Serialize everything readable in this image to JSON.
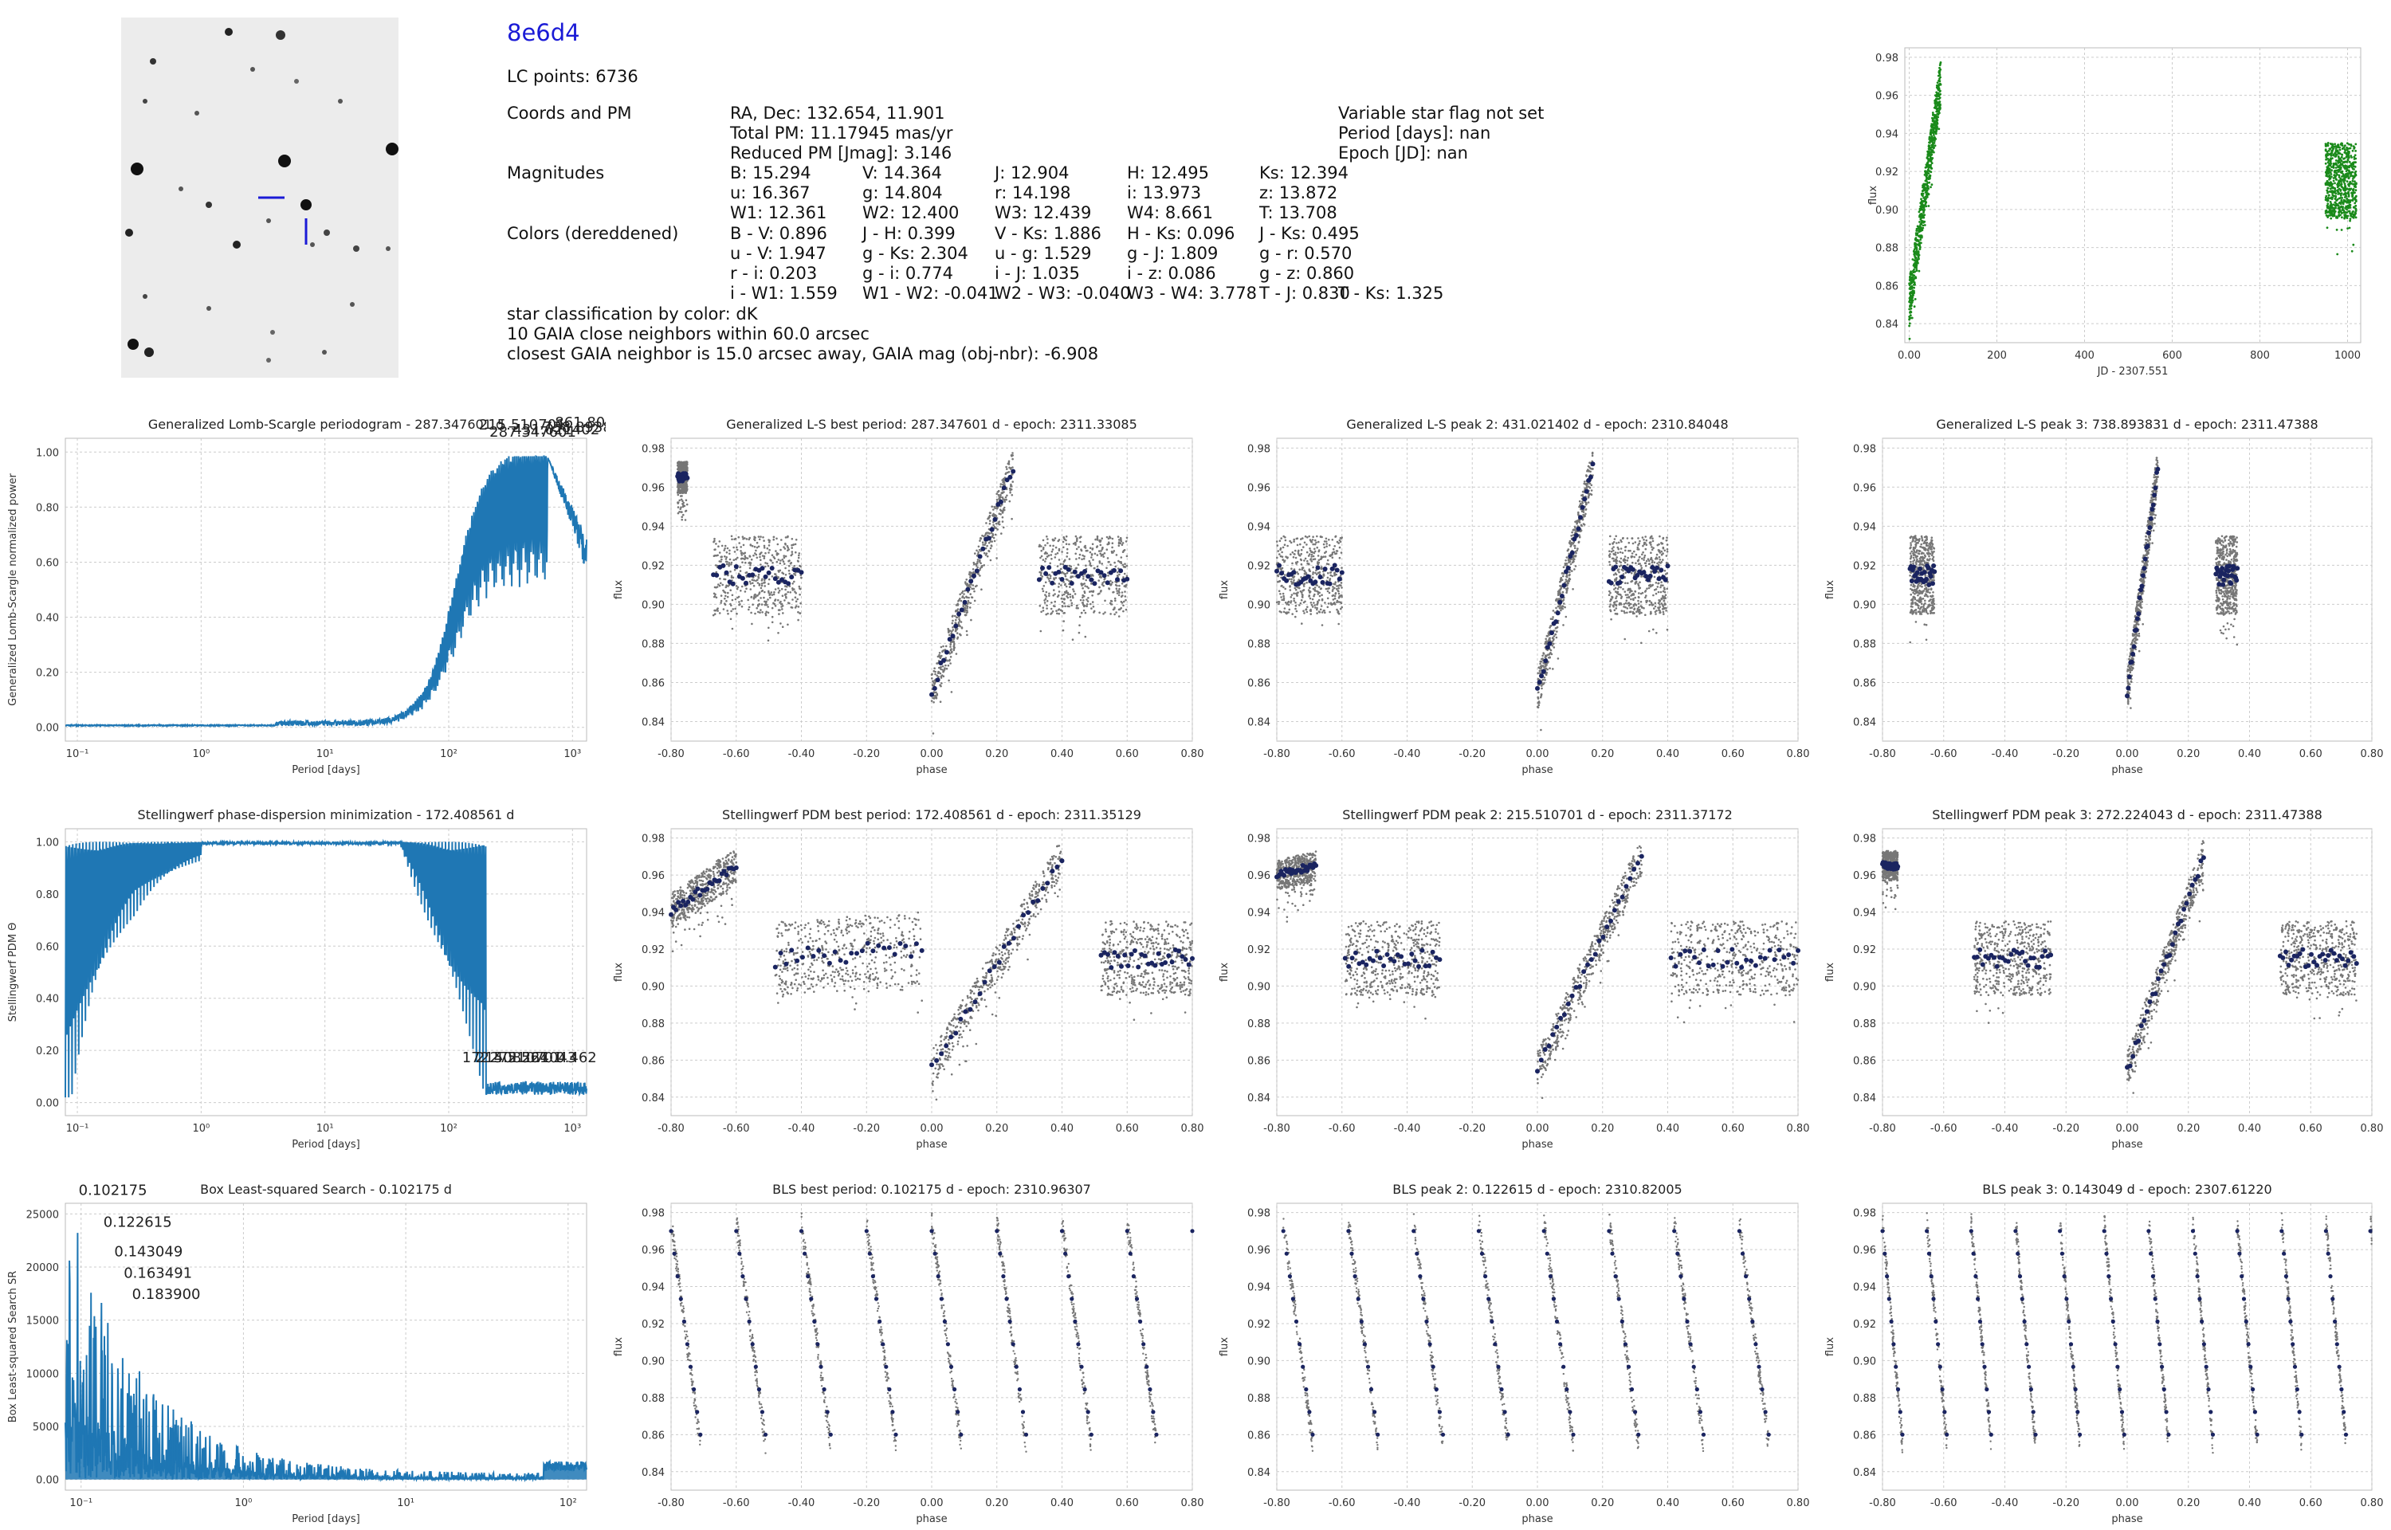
{
  "object": {
    "name": "8e6d4",
    "lc_points": "LC points: 6736",
    "coords_label": "Coords and PM",
    "radec": "RA, Dec: 132.654, 11.901",
    "total_pm": "Total PM: 11.17945 mas/yr",
    "reduced_pm": "Reduced PM [Jmag]: 3.146",
    "var_flag": "Variable star flag not set",
    "period": "Period [days]: nan",
    "epoch": "Epoch [JD]: nan",
    "mag_label": "Magnitudes",
    "mag_rows": [
      [
        "B: 15.294",
        "V: 14.364",
        "J: 12.904",
        "H: 12.495",
        "Ks: 12.394"
      ],
      [
        "u: 16.367",
        "g: 14.804",
        "r: 14.198",
        "i: 13.973",
        "z: 13.872"
      ],
      [
        "W1: 12.361",
        "W2: 12.400",
        "W3: 12.439",
        "W4: 8.661",
        "T: 13.708"
      ]
    ],
    "colors_label": "Colors (dereddened)",
    "color_rows": [
      [
        "B - V: 0.896",
        "J - H: 0.399",
        "V - Ks: 1.886",
        "H - Ks: 0.096",
        "J - Ks: 0.495"
      ],
      [
        "u - V: 1.947",
        "g - Ks: 2.304",
        "u - g: 1.529",
        "g - J: 1.809",
        "g - r: 0.570"
      ],
      [
        "r - i: 0.203",
        "g - i: 0.774",
        "i - J: 1.035",
        "i - z: 0.086",
        "g - z: 0.860"
      ],
      [
        "i - W1: 1.559",
        "W1 - W2: -0.041",
        "W2 - W3: -0.040",
        "W3 - W4: 3.778",
        "T - J: 0.830",
        "T - Ks: 1.325"
      ]
    ],
    "classification": "star classification by color: dK",
    "gaia_neighbors": "10 GAIA close neighbors within 60.0 arcsec",
    "gaia_closest": "closest GAIA neighbor is 15.0 arcsec away, GAIA mag (obj-nbr): -6.908"
  },
  "chart_data": [
    {
      "id": "raw",
      "type": "scatter",
      "xlabel": "JD - 2307.551",
      "ylabel": "flux",
      "xlim": [
        -10,
        1030
      ],
      "ylim": [
        0.83,
        0.985
      ],
      "xticks": [
        0,
        200,
        400,
        600,
        800,
        1000
      ],
      "yticks": [
        0.84,
        0.86,
        0.88,
        0.9,
        0.92,
        0.94,
        0.96,
        0.98
      ],
      "color": "#1a8a1a",
      "segments": [
        {
          "x": [
            0,
            72
          ],
          "y_start": 0.85,
          "y_end": 0.968,
          "spread": 0.012
        },
        {
          "x": [
            950,
            1020
          ],
          "y_start": 0.915,
          "y_end": 0.915,
          "spread": 0.02
        }
      ]
    },
    {
      "id": "gls",
      "type": "line",
      "title": "Generalized Lomb-Scargle periodogram - 287.347601 d",
      "xlabel": "Period [days]",
      "ylabel": "Generalized Lomb-Scargle normalized power",
      "xscale": "log",
      "xlim": [
        0.08,
        1300
      ],
      "ylim": [
        -0.05,
        1.05
      ],
      "xticks": [
        0.1,
        1,
        10,
        100,
        1000
      ],
      "xticklabels": [
        "10⁻¹",
        "10⁰",
        "10¹",
        "10²",
        "10³"
      ],
      "yticks": [
        0.0,
        0.2,
        0.4,
        0.6,
        0.8,
        1.0
      ],
      "color": "#1f77b4",
      "annotations": [
        {
          "text": "287.347601",
          "x": 287.3,
          "y": 1.0
        },
        {
          "text": "431.021402",
          "x": 431.0,
          "y": 0.99
        },
        {
          "text": "738.893831",
          "x": 738.9,
          "y": 0.98
        },
        {
          "text": "215.510701",
          "x": 215.5,
          "y": 0.97
        },
        {
          "text": "861.803",
          "x": 861.8,
          "y": 0.96
        }
      ]
    },
    {
      "id": "gls1",
      "type": "scatter",
      "title": "Generalized L-S best period: 287.347601 d - epoch: 2311.33085",
      "xlabel": "phase",
      "ylabel": "flux",
      "xlim": [
        -0.8,
        0.8
      ],
      "ylim": [
        0.83,
        0.985
      ],
      "xticks": [
        -0.8,
        -0.6,
        -0.4,
        -0.2,
        0.0,
        0.2,
        0.4,
        0.6,
        0.8
      ],
      "yticks": [
        0.84,
        0.86,
        0.88,
        0.9,
        0.92,
        0.94,
        0.96,
        0.98
      ],
      "segments": [
        {
          "x": [
            0.0,
            0.25
          ],
          "y_start": 0.855,
          "y_end": 0.97,
          "spread": 0.01
        },
        {
          "x": [
            0.33,
            0.6
          ],
          "y_start": 0.915,
          "y_end": 0.915,
          "spread": 0.02
        },
        {
          "x": [
            -0.78,
            -0.75
          ],
          "y_start": 0.965,
          "y_end": 0.965,
          "spread": 0.008
        },
        {
          "x": [
            -0.67,
            -0.4
          ],
          "y_start": 0.915,
          "y_end": 0.915,
          "spread": 0.02
        }
      ]
    },
    {
      "id": "gls2",
      "type": "scatter",
      "title": "Generalized L-S peak 2: 431.021402 d - epoch: 2310.84048",
      "xlabel": "phase",
      "ylabel": "flux",
      "xlim": [
        -0.8,
        0.8
      ],
      "ylim": [
        0.83,
        0.985
      ],
      "xticks": [
        -0.8,
        -0.6,
        -0.4,
        -0.2,
        0.0,
        0.2,
        0.4,
        0.6,
        0.8
      ],
      "yticks": [
        0.84,
        0.86,
        0.88,
        0.9,
        0.92,
        0.94,
        0.96,
        0.98
      ],
      "segments": [
        {
          "x": [
            0.0,
            0.17
          ],
          "y_start": 0.855,
          "y_end": 0.97,
          "spread": 0.01
        },
        {
          "x": [
            0.22,
            0.4
          ],
          "y_start": 0.915,
          "y_end": 0.915,
          "spread": 0.02
        },
        {
          "x": [
            -0.8,
            -0.6
          ],
          "y_start": 0.915,
          "y_end": 0.915,
          "spread": 0.02
        }
      ]
    },
    {
      "id": "gls3",
      "type": "scatter",
      "title": "Generalized L-S peak 3: 738.893831 d - epoch: 2311.47388",
      "xlabel": "phase",
      "ylabel": "flux",
      "xlim": [
        -0.8,
        0.8
      ],
      "ylim": [
        0.83,
        0.985
      ],
      "xticks": [
        -0.8,
        -0.6,
        -0.4,
        -0.2,
        0.0,
        0.2,
        0.4,
        0.6,
        0.8
      ],
      "yticks": [
        0.84,
        0.86,
        0.88,
        0.9,
        0.92,
        0.94,
        0.96,
        0.98
      ],
      "segments": [
        {
          "x": [
            0.0,
            0.1
          ],
          "y_start": 0.855,
          "y_end": 0.97,
          "spread": 0.01
        },
        {
          "x": [
            0.29,
            0.36
          ],
          "y_start": 0.915,
          "y_end": 0.915,
          "spread": 0.02
        },
        {
          "x": [
            -0.71,
            -0.63
          ],
          "y_start": 0.915,
          "y_end": 0.915,
          "spread": 0.02
        }
      ]
    },
    {
      "id": "pdm",
      "type": "line",
      "title": "Stellingwerf phase-dispersion minimization - 172.408561 d",
      "xlabel": "Period [days]",
      "ylabel": "Stellingwerf PDM Θ",
      "xscale": "log",
      "xlim": [
        0.08,
        1300
      ],
      "ylim": [
        -0.05,
        1.05
      ],
      "xticks": [
        0.1,
        1,
        10,
        100,
        1000
      ],
      "xticklabels": [
        "10⁻¹",
        "10⁰",
        "10¹",
        "10²",
        "10³"
      ],
      "yticks": [
        0.0,
        0.2,
        0.4,
        0.6,
        0.8,
        1.0
      ],
      "color": "#1f77b4",
      "annotations": [
        {
          "text": "172.408561",
          "x": 172.4,
          "y": 0.14
        },
        {
          "text": "215.510701",
          "x": 215.5,
          "y": 0.14
        },
        {
          "text": "272.224043",
          "x": 272.2,
          "y": 0.14
        },
        {
          "text": "0.462",
          "x": 900,
          "y": 0.14
        }
      ]
    },
    {
      "id": "pdm1",
      "type": "scatter",
      "title": "Stellingwerf PDM best period: 172.408561 d - epoch: 2311.35129",
      "xlabel": "phase",
      "ylabel": "flux",
      "xlim": [
        -0.8,
        0.8
      ],
      "ylim": [
        0.83,
        0.985
      ],
      "xticks": [
        -0.8,
        -0.6,
        -0.4,
        -0.2,
        0.0,
        0.2,
        0.4,
        0.6,
        0.8
      ],
      "yticks": [
        0.84,
        0.86,
        0.88,
        0.9,
        0.92,
        0.94,
        0.96,
        0.98
      ],
      "segments": [
        {
          "x": [
            -0.8,
            -0.6
          ],
          "y_start": 0.94,
          "y_end": 0.965,
          "spread": 0.01
        },
        {
          "x": [
            -0.48,
            -0.03
          ],
          "y_start": 0.915,
          "y_end": 0.92,
          "spread": 0.02
        },
        {
          "x": [
            0.0,
            0.4
          ],
          "y_start": 0.855,
          "y_end": 0.97,
          "spread": 0.01
        },
        {
          "x": [
            0.52,
            0.8
          ],
          "y_start": 0.915,
          "y_end": 0.915,
          "spread": 0.02
        }
      ]
    },
    {
      "id": "pdm2",
      "type": "scatter",
      "title": "Stellingwerf PDM peak 2: 215.510701 d - epoch: 2311.37172",
      "xlabel": "phase",
      "ylabel": "flux",
      "xlim": [
        -0.8,
        0.8
      ],
      "ylim": [
        0.83,
        0.985
      ],
      "xticks": [
        -0.8,
        -0.6,
        -0.4,
        -0.2,
        0.0,
        0.2,
        0.4,
        0.6,
        0.8
      ],
      "yticks": [
        0.84,
        0.86,
        0.88,
        0.9,
        0.92,
        0.94,
        0.96,
        0.98
      ],
      "segments": [
        {
          "x": [
            -0.8,
            -0.68
          ],
          "y_start": 0.96,
          "y_end": 0.965,
          "spread": 0.008
        },
        {
          "x": [
            -0.59,
            -0.3
          ],
          "y_start": 0.915,
          "y_end": 0.915,
          "spread": 0.02
        },
        {
          "x": [
            0.0,
            0.32
          ],
          "y_start": 0.855,
          "y_end": 0.97,
          "spread": 0.01
        },
        {
          "x": [
            0.41,
            0.8
          ],
          "y_start": 0.915,
          "y_end": 0.915,
          "spread": 0.02
        }
      ]
    },
    {
      "id": "pdm3",
      "type": "scatter",
      "title": "Stellingwerf PDM peak 3: 272.224043 d - epoch: 2311.47388",
      "xlabel": "phase",
      "ylabel": "flux",
      "xlim": [
        -0.8,
        0.8
      ],
      "ylim": [
        0.83,
        0.985
      ],
      "xticks": [
        -0.8,
        -0.6,
        -0.4,
        -0.2,
        0.0,
        0.2,
        0.4,
        0.6,
        0.8
      ],
      "yticks": [
        0.84,
        0.86,
        0.88,
        0.9,
        0.92,
        0.94,
        0.96,
        0.98
      ],
      "segments": [
        {
          "x": [
            -0.8,
            -0.75
          ],
          "y_start": 0.965,
          "y_end": 0.965,
          "spread": 0.008
        },
        {
          "x": [
            -0.5,
            -0.25
          ],
          "y_start": 0.915,
          "y_end": 0.915,
          "spread": 0.02
        },
        {
          "x": [
            0.0,
            0.25
          ],
          "y_start": 0.855,
          "y_end": 0.97,
          "spread": 0.01
        },
        {
          "x": [
            0.5,
            0.75
          ],
          "y_start": 0.915,
          "y_end": 0.915,
          "spread": 0.02
        }
      ]
    },
    {
      "id": "bls",
      "type": "line",
      "title": "Box Least-squared Search - 0.102175 d",
      "xlabel": "Period [days]",
      "ylabel": "Box Least-squared Search SR",
      "xscale": "log",
      "xlim": [
        0.08,
        130
      ],
      "ylim": [
        -1000,
        26000
      ],
      "xticks": [
        0.1,
        1,
        10,
        100
      ],
      "xticklabels": [
        "10⁻¹",
        "10⁰",
        "10¹",
        "10²"
      ],
      "yticks": [
        0,
        5000,
        10000,
        15000,
        20000,
        25000
      ],
      "color": "#1f77b4",
      "annotations": [
        {
          "text": "0.102175",
          "x": 0.102175,
          "y": 25600
        },
        {
          "text": "0.122615",
          "x": 0.122615,
          "y": 23800
        },
        {
          "text": "0.143049",
          "x": 0.143049,
          "y": 21000
        },
        {
          "text": "0.163491",
          "x": 0.163491,
          "y": 19000
        },
        {
          "text": "0.183900",
          "x": 0.1839,
          "y": 17000
        }
      ]
    },
    {
      "id": "bls1",
      "type": "scatter",
      "title": "BLS best period: 0.102175 d - epoch: 2310.96307",
      "xlabel": "phase",
      "ylabel": "flux",
      "xlim": [
        -0.8,
        0.8
      ],
      "ylim": [
        0.83,
        0.985
      ],
      "xticks": [
        -0.8,
        -0.6,
        -0.4,
        -0.2,
        0.0,
        0.2,
        0.4,
        0.6,
        0.8
      ],
      "yticks": [
        0.84,
        0.86,
        0.88,
        0.9,
        0.92,
        0.94,
        0.96,
        0.98
      ],
      "sawtooth": {
        "period": 0.2,
        "phase0": -0.8
      }
    },
    {
      "id": "bls2",
      "type": "scatter",
      "title": "BLS peak 2: 0.122615 d - epoch: 2310.82005",
      "xlabel": "phase",
      "ylabel": "flux",
      "xlim": [
        -0.8,
        0.8
      ],
      "ylim": [
        0.83,
        0.985
      ],
      "xticks": [
        -0.8,
        -0.6,
        -0.4,
        -0.2,
        0.0,
        0.2,
        0.4,
        0.6,
        0.8
      ],
      "yticks": [
        0.84,
        0.86,
        0.88,
        0.9,
        0.92,
        0.94,
        0.96,
        0.98
      ],
      "sawtooth": {
        "period": 0.2,
        "phase0": -0.78
      }
    },
    {
      "id": "bls3",
      "type": "scatter",
      "title": "BLS peak 3: 0.143049 d - epoch: 2307.61220",
      "xlabel": "phase",
      "ylabel": "flux",
      "xlim": [
        -0.8,
        0.8
      ],
      "ylim": [
        0.83,
        0.985
      ],
      "xticks": [
        -0.8,
        -0.6,
        -0.4,
        -0.2,
        0.0,
        0.2,
        0.4,
        0.6,
        0.8
      ],
      "yticks": [
        0.84,
        0.86,
        0.88,
        0.9,
        0.92,
        0.94,
        0.96,
        0.98
      ],
      "sawtooth": {
        "period": 0.145,
        "phase0": -0.8
      }
    }
  ]
}
